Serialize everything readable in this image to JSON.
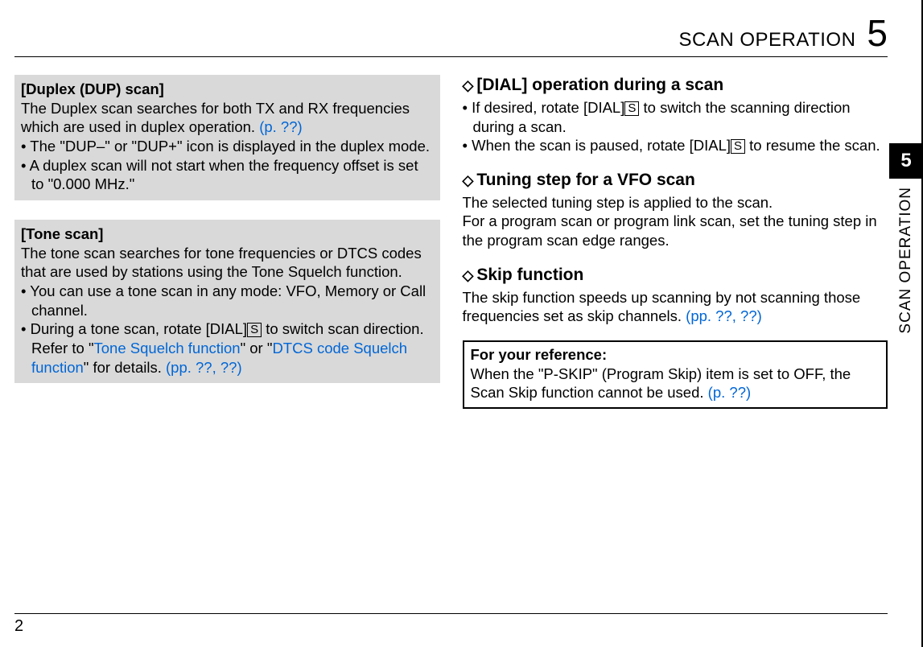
{
  "header": {
    "title": "SCAN OPERATION",
    "chapter": "5"
  },
  "sidetab": {
    "num": "5",
    "text": "SCAN OPERATION"
  },
  "footer": {
    "pagenum": "2"
  },
  "left": {
    "box1": {
      "title": "[Duplex (DUP) scan]",
      "intro_a": "The Duplex scan searches for both TX and RX frequencies which are used in duplex operation. ",
      "intro_link": "(p. ??)",
      "b1": "The \"DUP–\" or \"DUP+\" icon is displayed in the duplex mode.",
      "b2": "A duplex scan will not start when the frequency offset is set to \"0.000 MHz.\""
    },
    "box2": {
      "title": "[Tone scan]",
      "intro": "The tone scan searches for tone frequencies or DTCS codes that are used by stations using the Tone Squelch function.",
      "b1": "You can use a tone scan in any mode: VFO, Memory or Call channel.",
      "b2a": "During a tone scan, rotate [DIAL]",
      "b2key": "S",
      "b2b": " to switch scan direction.",
      "ref_a": "Refer to \"",
      "ref_link1": "Tone Squelch function",
      "ref_mid": "\" or \"",
      "ref_link2": "DTCS code Squelch function",
      "ref_b": "\" for details. ",
      "ref_pp": "(pp. ??, ??)"
    }
  },
  "right": {
    "sec1": {
      "title": "[DIAL] operation during a scan",
      "b1a": "If desired, rotate [DIAL]",
      "key": "S",
      "b1b": " to switch the scanning direction during a scan.",
      "b2a": "When the scan is paused, rotate [DIAL]",
      "b2b": " to resume the scan."
    },
    "sec2": {
      "title": "Tuning step for a VFO scan",
      "p1": "The selected tuning step is applied to the scan.",
      "p2": "For a program scan or program link scan, set the tuning step in the program scan edge ranges."
    },
    "sec3": {
      "title": "Skip function",
      "p1": "The skip function speeds up scanning by not scanning those frequencies set as skip channels. ",
      "pp": "(pp. ??, ??)"
    },
    "ref": {
      "title": "For your reference:",
      "body": "When the \"P-SKIP\" (Program Skip) item is set to OFF, the Scan Skip function cannot be used. ",
      "link": "(p. ??)"
    }
  }
}
